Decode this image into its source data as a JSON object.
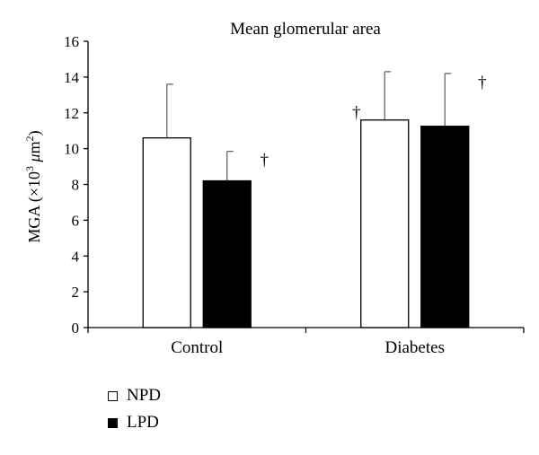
{
  "chart_data": {
    "type": "bar",
    "title": "Mean glomerular area",
    "ylabel_prefix": "MGA (×10",
    "ylabel_exp": "3",
    "ylabel_unit_mu": "μ",
    "ylabel_unit_m": "m",
    "ylabel_unit_exp": "2",
    "ylabel_suffix": ")",
    "xlabel": "",
    "categories": [
      "Control",
      "Diabetes"
    ],
    "ylim": [
      0,
      16
    ],
    "yticks": [
      0,
      2,
      4,
      6,
      8,
      10,
      12,
      14,
      16
    ],
    "grid": false,
    "legend_position": "bottom-left",
    "series": [
      {
        "name": "NPD",
        "color": "#ffffff",
        "values": [
          10.6,
          11.6
        ],
        "errors": [
          3.0,
          2.7
        ],
        "significance": [
          "",
          "†"
        ]
      },
      {
        "name": "LPD",
        "color": "#000000",
        "values": [
          8.2,
          11.25
        ],
        "errors": [
          1.65,
          2.95
        ],
        "significance": [
          "†",
          "†"
        ]
      }
    ]
  }
}
